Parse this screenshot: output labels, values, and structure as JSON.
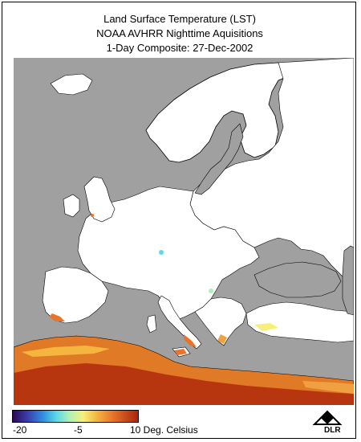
{
  "title": {
    "line1": "Land Surface Temperature (LST)",
    "line2": "NOAA AVHRR Nighttime Aquisitions",
    "line3": "1-Day Composite: 27-Dec-2002"
  },
  "legend": {
    "tick_min": "-20",
    "tick_mid": "-5",
    "tick_max": "10 Deg. Celsius",
    "colors": [
      "#2a0a55",
      "#3b3fb0",
      "#2f8fe0",
      "#5fd8e6",
      "#aef0b6",
      "#f6f07a",
      "#f5b640",
      "#e8742a",
      "#a8260e"
    ]
  },
  "logo": {
    "text": "DLR"
  },
  "map_colors": {
    "sea": "#a0a0a0",
    "land_no_data": "#ffffff",
    "coastline": "#000000"
  }
}
